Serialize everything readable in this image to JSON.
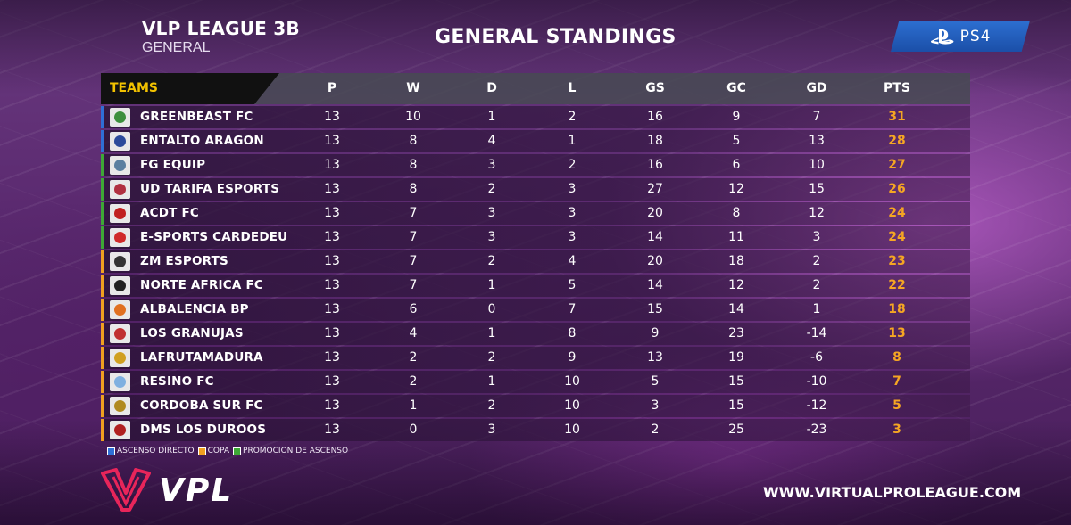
{
  "header": {
    "league_title": "VLP LEAGUE 3B",
    "league_subtitle": "GENERAL",
    "page_title": "GENERAL STANDINGS",
    "platform_label": "PS4"
  },
  "table": {
    "columns": {
      "teams": "TEAMS",
      "p": "P",
      "w": "W",
      "d": "D",
      "l": "L",
      "gs": "GS",
      "gc": "GC",
      "gd": "GD",
      "pts": "PTS"
    },
    "rows": [
      {
        "team": "GREENBEAST FC",
        "p": "13",
        "w": "10",
        "d": "1",
        "l": "2",
        "gs": "16",
        "gc": "9",
        "gd": "7",
        "pts": "31",
        "zone": "ascenso",
        "crest_color": "#3d8f3d"
      },
      {
        "team": "ENTALTO ARAGON",
        "p": "13",
        "w": "8",
        "d": "4",
        "l": "1",
        "gs": "18",
        "gc": "5",
        "gd": "13",
        "pts": "28",
        "zone": "ascenso",
        "crest_color": "#2b4a9a"
      },
      {
        "team": "FG EQUIP",
        "p": "13",
        "w": "8",
        "d": "3",
        "l": "2",
        "gs": "16",
        "gc": "6",
        "gd": "10",
        "pts": "27",
        "zone": "promocion",
        "crest_color": "#5a7fa0"
      },
      {
        "team": "UD TARIFA ESPORTS",
        "p": "13",
        "w": "8",
        "d": "2",
        "l": "3",
        "gs": "27",
        "gc": "12",
        "gd": "15",
        "pts": "26",
        "zone": "promocion",
        "crest_color": "#b03040"
      },
      {
        "team": "ACDT FC",
        "p": "13",
        "w": "7",
        "d": "3",
        "l": "3",
        "gs": "20",
        "gc": "8",
        "gd": "12",
        "pts": "24",
        "zone": "promocion",
        "crest_color": "#c02020"
      },
      {
        "team": "E-SPORTS CARDEDEU",
        "p": "13",
        "w": "7",
        "d": "3",
        "l": "3",
        "gs": "14",
        "gc": "11",
        "gd": "3",
        "pts": "24",
        "zone": "promocion",
        "crest_color": "#d02a2a"
      },
      {
        "team": "ZM ESPORTS",
        "p": "13",
        "w": "7",
        "d": "2",
        "l": "4",
        "gs": "20",
        "gc": "18",
        "gd": "2",
        "pts": "23",
        "zone": "copa",
        "crest_color": "#333333"
      },
      {
        "team": "NORTE AFRICA FC",
        "p": "13",
        "w": "7",
        "d": "1",
        "l": "5",
        "gs": "14",
        "gc": "12",
        "gd": "2",
        "pts": "22",
        "zone": "copa",
        "crest_color": "#222222"
      },
      {
        "team": "ALBALENCIA BP",
        "p": "13",
        "w": "6",
        "d": "0",
        "l": "7",
        "gs": "15",
        "gc": "14",
        "gd": "1",
        "pts": "18",
        "zone": "copa",
        "crest_color": "#e07020"
      },
      {
        "team": "LOS GRANUJAS",
        "p": "13",
        "w": "4",
        "d": "1",
        "l": "8",
        "gs": "9",
        "gc": "23",
        "gd": "-14",
        "pts": "13",
        "zone": "copa",
        "crest_color": "#c03030"
      },
      {
        "team": "LAFRUTAMADURA",
        "p": "13",
        "w": "2",
        "d": "2",
        "l": "9",
        "gs": "13",
        "gc": "19",
        "gd": "-6",
        "pts": "8",
        "zone": "copa",
        "crest_color": "#d0a020"
      },
      {
        "team": "RESINO FC",
        "p": "13",
        "w": "2",
        "d": "1",
        "l": "10",
        "gs": "5",
        "gc": "15",
        "gd": "-10",
        "pts": "7",
        "zone": "copa",
        "crest_color": "#7fb0e0"
      },
      {
        "team": "CORDOBA SUR FC",
        "p": "13",
        "w": "1",
        "d": "2",
        "l": "10",
        "gs": "3",
        "gc": "15",
        "gd": "-12",
        "pts": "5",
        "zone": "copa",
        "crest_color": "#b08a20"
      },
      {
        "team": "DMS LOS DUROOS",
        "p": "13",
        "w": "0",
        "d": "3",
        "l": "10",
        "gs": "2",
        "gc": "25",
        "gd": "-23",
        "pts": "3",
        "zone": "copa",
        "crest_color": "#b02020"
      }
    ]
  },
  "legend": [
    {
      "label": "ASCENSO DIRECTO",
      "color": "#2f6fd6"
    },
    {
      "label": "COPA",
      "color": "#f0a020"
    },
    {
      "label": "PROMOCION DE ASCENSO",
      "color": "#3ea836"
    }
  ],
  "zone_colors": {
    "ascenso": "#2f6fd6",
    "promocion": "#3ea836",
    "copa": "#f0a020"
  },
  "footer": {
    "brand": "VPL",
    "website": "WWW.VIRTUALPROLEAGUE.COM"
  },
  "icons": {
    "brand_logo": "vpl-logo-icon",
    "platform": "playstation-icon"
  }
}
